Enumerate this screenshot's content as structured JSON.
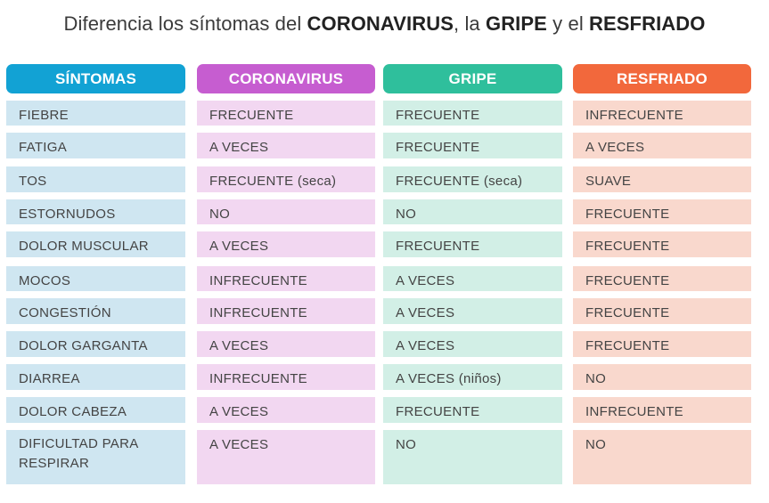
{
  "title": {
    "part1": "Diferencia los síntomas del ",
    "bold1": "CORONAVIRUS",
    "part2": ", la ",
    "bold2": "GRIPE",
    "part3": " y el ",
    "bold3": "RESFRIADO"
  },
  "colors": {
    "sintomas": "#12a2d4",
    "coronavirus": "#c65dd0",
    "gripe": "#2fbf9c",
    "resfriado": "#f2683c"
  },
  "headers": [
    "SÍNTOMAS",
    "CORONAVIRUS",
    "GRIPE",
    "RESFRIADO"
  ],
  "rows": [
    [
      "FIEBRE",
      "FRECUENTE",
      "FRECUENTE",
      "INFRECUENTE"
    ],
    [
      "FATIGA",
      "A VECES",
      "FRECUENTE",
      "A VECES"
    ],
    [
      "TOS",
      "FRECUENTE (seca)",
      "FRECUENTE (seca)",
      "SUAVE"
    ],
    [
      "ESTORNUDOS",
      "NO",
      "NO",
      "FRECUENTE"
    ],
    [
      "DOLOR MUSCULAR",
      "A VECES",
      "FRECUENTE",
      "FRECUENTE"
    ],
    [
      "MOCOS",
      "INFRECUENTE",
      "A VECES",
      "FRECUENTE"
    ],
    [
      "CONGESTIÓN",
      "INFRECUENTE",
      "A VECES",
      "FRECUENTE"
    ],
    [
      "DOLOR GARGANTA",
      "A VECES",
      "A VECES",
      "FRECUENTE"
    ],
    [
      "DIARREA",
      "INFRECUENTE",
      "A VECES (niños)",
      "NO"
    ],
    [
      "DOLOR CABEZA",
      "A VECES",
      "FRECUENTE",
      "INFRECUENTE"
    ],
    [
      "DIFICULTAD PARA RESPIRAR",
      "A VECES",
      "NO",
      "NO"
    ]
  ]
}
